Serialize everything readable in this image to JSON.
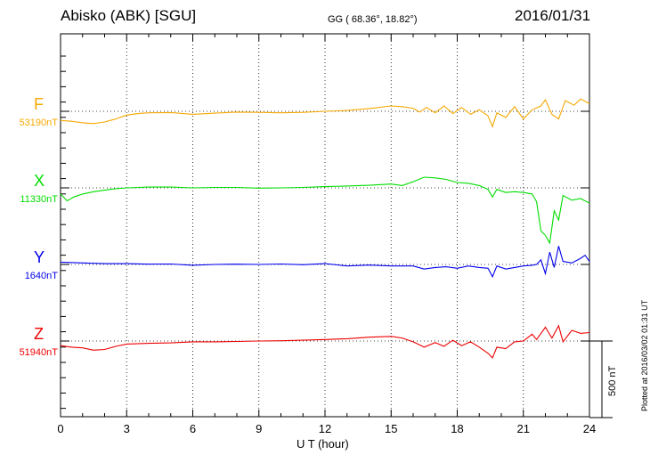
{
  "header": {
    "station": "Abisko (ABK)  [SGU]",
    "coords": "GG ( 68.36°,  18.82°)",
    "date": "2016/01/31"
  },
  "footer": {
    "plotted": "Plotted at 2016/03/02 01:31  UT",
    "scale": "500 nT"
  },
  "chart_data": {
    "type": "line",
    "xlabel": "U T (hour)",
    "xlim": [
      0,
      24
    ],
    "xticks": [
      "0",
      "3",
      "6",
      "9",
      "12",
      "15",
      "18",
      "21",
      "24"
    ],
    "scale_bar_nT": 500,
    "series": [
      {
        "name": "F",
        "baseline_label": "53190nT",
        "baseline": 53190,
        "color": "#f5a800",
        "points": [
          [
            0,
            53130
          ],
          [
            0.5,
            53125
          ],
          [
            1,
            53115
          ],
          [
            1.5,
            53110
          ],
          [
            2,
            53120
          ],
          [
            2.5,
            53140
          ],
          [
            3,
            53165
          ],
          [
            3.5,
            53175
          ],
          [
            4,
            53180
          ],
          [
            5,
            53182
          ],
          [
            6,
            53170
          ],
          [
            7,
            53178
          ],
          [
            8,
            53185
          ],
          [
            9,
            53183
          ],
          [
            10,
            53180
          ],
          [
            11,
            53183
          ],
          [
            12,
            53190
          ],
          [
            13,
            53195
          ],
          [
            14,
            53208
          ],
          [
            15,
            53225
          ],
          [
            15.5,
            53220
          ],
          [
            16,
            53210
          ],
          [
            16.3,
            53185
          ],
          [
            16.6,
            53215
          ],
          [
            17,
            53180
          ],
          [
            17.4,
            53225
          ],
          [
            17.8,
            53175
          ],
          [
            18.2,
            53215
          ],
          [
            18.6,
            53170
          ],
          [
            19,
            53200
          ],
          [
            19.4,
            53160
          ],
          [
            19.6,
            53090
          ],
          [
            19.8,
            53180
          ],
          [
            20.2,
            53150
          ],
          [
            20.6,
            53220
          ],
          [
            21,
            53140
          ],
          [
            21.4,
            53200
          ],
          [
            21.8,
            53225
          ],
          [
            22,
            53265
          ],
          [
            22.3,
            53170
          ],
          [
            22.6,
            53140
          ],
          [
            22.9,
            53260
          ],
          [
            23.3,
            53230
          ],
          [
            23.6,
            53270
          ],
          [
            24,
            53240
          ]
        ]
      },
      {
        "name": "X",
        "baseline_label": "11330nT",
        "baseline": 11330,
        "color": "#00dd00",
        "points": [
          [
            0,
            11290
          ],
          [
            0.3,
            11245
          ],
          [
            0.6,
            11270
          ],
          [
            1,
            11290
          ],
          [
            1.5,
            11305
          ],
          [
            2,
            11315
          ],
          [
            2.5,
            11325
          ],
          [
            3,
            11330
          ],
          [
            4,
            11335
          ],
          [
            5,
            11335
          ],
          [
            6,
            11330
          ],
          [
            7,
            11333
          ],
          [
            8,
            11333
          ],
          [
            9,
            11328
          ],
          [
            10,
            11330
          ],
          [
            11,
            11333
          ],
          [
            12,
            11338
          ],
          [
            13,
            11342
          ],
          [
            14,
            11347
          ],
          [
            15,
            11355
          ],
          [
            15.5,
            11345
          ],
          [
            16,
            11370
          ],
          [
            16.5,
            11400
          ],
          [
            17,
            11395
          ],
          [
            17.5,
            11385
          ],
          [
            18,
            11365
          ],
          [
            18.5,
            11360
          ],
          [
            19,
            11345
          ],
          [
            19.4,
            11320
          ],
          [
            19.6,
            11270
          ],
          [
            19.8,
            11320
          ],
          [
            20.2,
            11300
          ],
          [
            20.6,
            11305
          ],
          [
            21,
            11300
          ],
          [
            21.4,
            11290
          ],
          [
            21.6,
            11240
          ],
          [
            21.8,
            11050
          ],
          [
            22,
            11020
          ],
          [
            22.2,
            10970
          ],
          [
            22.4,
            11180
          ],
          [
            22.6,
            11120
          ],
          [
            22.8,
            11280
          ],
          [
            23.2,
            11250
          ],
          [
            23.6,
            11260
          ],
          [
            24,
            11230
          ]
        ]
      },
      {
        "name": "Y",
        "baseline_label": "1640nT",
        "baseline": 1640,
        "color": "#0000ee",
        "points": [
          [
            0,
            1655
          ],
          [
            1,
            1650
          ],
          [
            2,
            1645
          ],
          [
            3,
            1645
          ],
          [
            4,
            1642
          ],
          [
            5,
            1643
          ],
          [
            6,
            1635
          ],
          [
            7,
            1640
          ],
          [
            8,
            1642
          ],
          [
            9,
            1640
          ],
          [
            10,
            1643
          ],
          [
            11,
            1638
          ],
          [
            12,
            1645
          ],
          [
            13,
            1630
          ],
          [
            14,
            1636
          ],
          [
            15,
            1630
          ],
          [
            16,
            1630
          ],
          [
            16.5,
            1610
          ],
          [
            17,
            1620
          ],
          [
            17.5,
            1625
          ],
          [
            18,
            1615
          ],
          [
            18.5,
            1630
          ],
          [
            19,
            1620
          ],
          [
            19.4,
            1615
          ],
          [
            19.6,
            1560
          ],
          [
            19.8,
            1630
          ],
          [
            20.2,
            1610
          ],
          [
            20.6,
            1620
          ],
          [
            21,
            1630
          ],
          [
            21.4,
            1635
          ],
          [
            21.6,
            1640
          ],
          [
            21.8,
            1670
          ],
          [
            22,
            1580
          ],
          [
            22.2,
            1720
          ],
          [
            22.4,
            1620
          ],
          [
            22.6,
            1760
          ],
          [
            22.8,
            1660
          ],
          [
            23.2,
            1650
          ],
          [
            23.6,
            1680
          ],
          [
            23.8,
            1700
          ],
          [
            24,
            1660
          ]
        ]
      },
      {
        "name": "Z",
        "baseline_label": "51940nT",
        "baseline": 51940,
        "color": "#ee0000",
        "points": [
          [
            0,
            51910
          ],
          [
            0.5,
            51900
          ],
          [
            1,
            51895
          ],
          [
            1.5,
            51880
          ],
          [
            2,
            51885
          ],
          [
            2.5,
            51905
          ],
          [
            3,
            51920
          ],
          [
            4,
            51925
          ],
          [
            5,
            51928
          ],
          [
            6,
            51935
          ],
          [
            7,
            51935
          ],
          [
            8,
            51937
          ],
          [
            9,
            51940
          ],
          [
            10,
            51942
          ],
          [
            11,
            51945
          ],
          [
            12,
            51950
          ],
          [
            13,
            51955
          ],
          [
            14,
            51965
          ],
          [
            15,
            51970
          ],
          [
            15.5,
            51960
          ],
          [
            16,
            51935
          ],
          [
            16.5,
            51900
          ],
          [
            17,
            51930
          ],
          [
            17.4,
            51905
          ],
          [
            17.8,
            51945
          ],
          [
            18.2,
            51910
          ],
          [
            18.6,
            51935
          ],
          [
            19,
            51900
          ],
          [
            19.4,
            51860
          ],
          [
            19.6,
            51830
          ],
          [
            19.8,
            51900
          ],
          [
            20.2,
            51890
          ],
          [
            20.6,
            51935
          ],
          [
            21,
            51940
          ],
          [
            21.4,
            51985
          ],
          [
            21.6,
            51950
          ],
          [
            22,
            52030
          ],
          [
            22.3,
            51960
          ],
          [
            22.6,
            52040
          ],
          [
            22.8,
            51935
          ],
          [
            23.2,
            52010
          ],
          [
            23.6,
            51990
          ],
          [
            24,
            51995
          ]
        ]
      }
    ]
  }
}
